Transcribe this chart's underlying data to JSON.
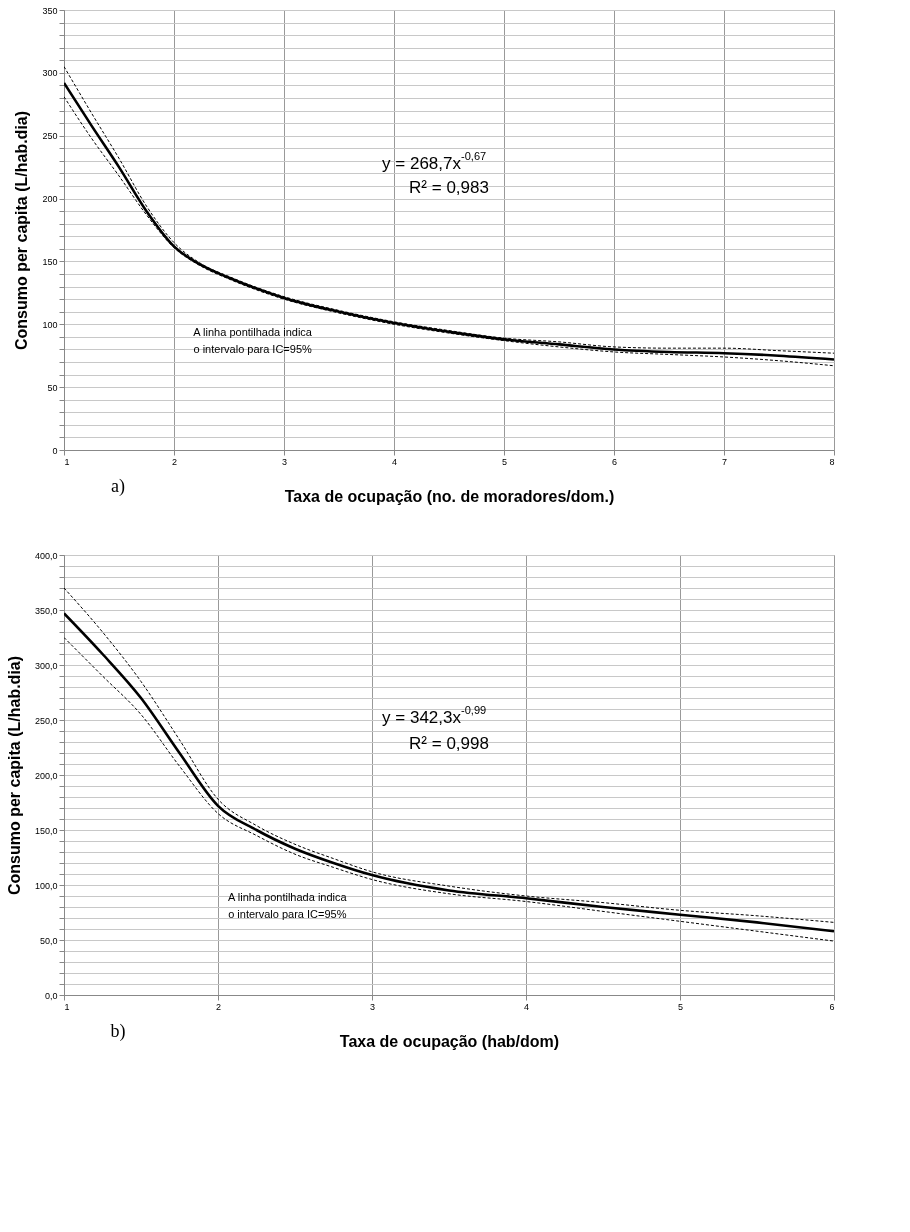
{
  "chart_data": [
    {
      "type": "line",
      "xlabel": "Taxa de ocupação (no. de moradores/dom.)",
      "ylabel": "Consumo per capita (L/hab.dia)",
      "x": [
        1,
        1.25,
        1.5,
        1.75,
        2,
        2.25,
        2.5,
        3,
        3.5,
        4,
        4.5,
        5,
        5.5,
        6,
        6.5,
        7,
        7.5,
        8
      ],
      "series": [
        {
          "color": "#000000",
          "line_style": "solid",
          "values": [
            292,
            258,
            225,
            190,
            162,
            147,
            137,
            121,
            110,
            101,
            94,
            88,
            84,
            80,
            78,
            77,
            75,
            72
          ]
        },
        {
          "color": "#000000",
          "line_style": "dashed",
          "values": [
            305,
            268,
            232,
            194,
            165,
            148,
            138,
            122,
            111,
            102,
            95,
            89,
            86,
            82,
            81,
            81,
            79,
            77
          ]
        },
        {
          "color": "#000000",
          "line_style": "dashed",
          "values": [
            281,
            248,
            218,
            187,
            161,
            146,
            136,
            120,
            109,
            100,
            93,
            87,
            82,
            78,
            76,
            74,
            71,
            67
          ]
        }
      ],
      "xlim": [
        1,
        8
      ],
      "xticks": [
        1,
        2,
        3,
        4,
        5,
        6,
        7,
        8
      ],
      "ylim": [
        0,
        350
      ],
      "yticks": [
        0,
        {
          "value": 10,
          "label": null
        },
        {
          "value": 20,
          "label": null
        },
        {
          "value": 30,
          "label": null
        },
        {
          "value": 40,
          "label": null
        },
        50,
        {
          "value": 60,
          "label": null
        },
        {
          "value": 70,
          "label": null
        },
        {
          "value": 80,
          "label": null
        },
        {
          "value": 90,
          "label": null
        },
        100,
        {
          "value": 110,
          "label": null
        },
        {
          "value": 120,
          "label": null
        },
        {
          "value": 130,
          "label": null
        },
        {
          "value": 140,
          "label": null
        },
        150,
        {
          "value": 160,
          "label": null
        },
        {
          "value": 170,
          "label": null
        },
        {
          "value": 180,
          "label": null
        },
        {
          "value": 190,
          "label": null
        },
        200,
        {
          "value": 210,
          "label": null
        },
        {
          "value": 220,
          "label": null
        },
        {
          "value": 230,
          "label": null
        },
        {
          "value": 240,
          "label": null
        },
        250,
        {
          "value": 260,
          "label": null
        },
        {
          "value": 270,
          "label": null
        },
        {
          "value": 280,
          "label": null
        },
        {
          "value": 290,
          "label": null
        },
        300,
        {
          "value": 310,
          "label": null
        },
        {
          "value": 320,
          "label": null
        },
        {
          "value": 330,
          "label": null
        },
        {
          "value": 340,
          "label": null
        },
        350
      ],
      "grid": true,
      "annotations": [
        "y = 268,7x$^{-0,67}$",
        "R² = 0,983",
        "A linha pontilhada indica\no intervalo para IC=95%",
        "a)"
      ]
    },
    {
      "type": "line",
      "xlabel": "Taxa de ocupação (hab/dom)",
      "ylabel": "Consumo per capita (L/hab.dia)",
      "x": [
        1,
        1.25,
        1.5,
        1.75,
        2,
        2.25,
        2.5,
        2.75,
        3,
        3.5,
        4,
        4.5,
        5,
        5.5,
        6
      ],
      "series": [
        {
          "color": "#000000",
          "line_style": "solid",
          "values": [
            347,
            310,
            270,
            220,
            172,
            150,
            133,
            120,
            109,
            95,
            88,
            80,
            73,
            66,
            58
          ]
        },
        {
          "color": "#000000",
          "line_style": "dashed",
          "values": [
            370,
            330,
            285,
            232,
            178,
            154,
            137,
            124,
            112,
            99,
            90,
            84,
            77,
            72,
            66
          ]
        },
        {
          "color": "#000000",
          "line_style": "dashed",
          "values": [
            325,
            290,
            255,
            208,
            165,
            145,
            128,
            116,
            105,
            92,
            85,
            76,
            67,
            58,
            49
          ]
        }
      ],
      "xlim": [
        1,
        6
      ],
      "xticks": [
        1,
        2,
        3,
        4,
        5,
        6
      ],
      "ylim": [
        0,
        400
      ],
      "yticks": [
        {
          "value": 0,
          "label": "0,0"
        },
        {
          "value": 10,
          "label": null
        },
        {
          "value": 20,
          "label": null
        },
        {
          "value": 30,
          "label": null
        },
        {
          "value": 40,
          "label": null
        },
        {
          "value": 50,
          "label": "50,0"
        },
        {
          "value": 60,
          "label": null
        },
        {
          "value": 70,
          "label": null
        },
        {
          "value": 80,
          "label": null
        },
        {
          "value": 90,
          "label": null
        },
        {
          "value": 100,
          "label": "100,0"
        },
        {
          "value": 110,
          "label": null
        },
        {
          "value": 120,
          "label": null
        },
        {
          "value": 130,
          "label": null
        },
        {
          "value": 140,
          "label": null
        },
        {
          "value": 150,
          "label": "150,0"
        },
        {
          "value": 160,
          "label": null
        },
        {
          "value": 170,
          "label": null
        },
        {
          "value": 180,
          "label": null
        },
        {
          "value": 190,
          "label": null
        },
        {
          "value": 200,
          "label": "200,0"
        },
        {
          "value": 210,
          "label": null
        },
        {
          "value": 220,
          "label": null
        },
        {
          "value": 230,
          "label": null
        },
        {
          "value": 240,
          "label": null
        },
        {
          "value": 250,
          "label": "250,0"
        },
        {
          "value": 260,
          "label": null
        },
        {
          "value": 270,
          "label": null
        },
        {
          "value": 280,
          "label": null
        },
        {
          "value": 290,
          "label": null
        },
        {
          "value": 300,
          "label": "300,0"
        },
        {
          "value": 310,
          "label": null
        },
        {
          "value": 320,
          "label": null
        },
        {
          "value": 330,
          "label": null
        },
        {
          "value": 340,
          "label": null
        },
        {
          "value": 350,
          "label": "350,0"
        },
        {
          "value": 360,
          "label": null
        },
        {
          "value": 370,
          "label": null
        },
        {
          "value": 380,
          "label": null
        },
        {
          "value": 390,
          "label": null
        },
        {
          "value": 400,
          "label": "400,0"
        }
      ],
      "grid": true,
      "annotations": [
        "y = 342,3x$^{-0,99}$",
        "R² = 0,998",
        "A linha pontilhada indica\no intervalo para IC=95%",
        "b)"
      ]
    }
  ]
}
